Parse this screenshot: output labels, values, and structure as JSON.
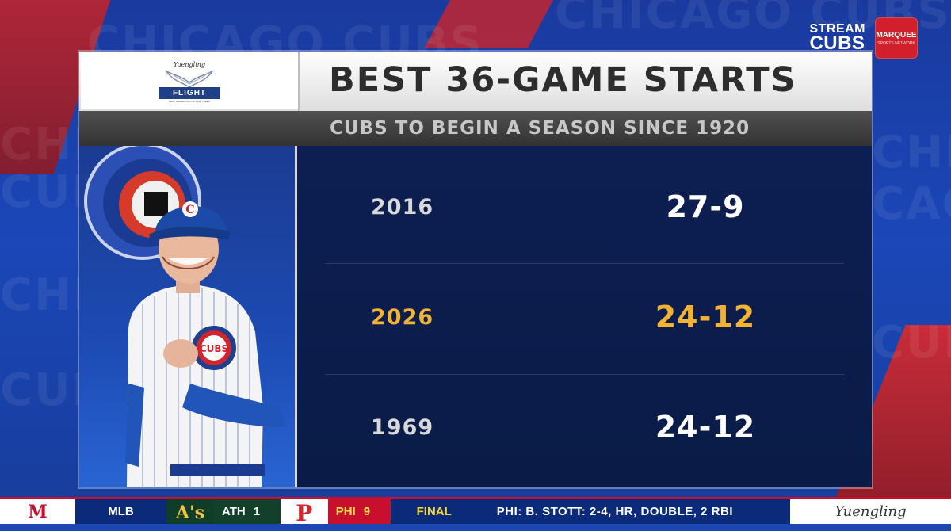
{
  "background": {
    "words": [
      "CHICAGO CUBS",
      "CHICAGO CUBS",
      "CHICAGO",
      "CUBS",
      "CHICAGO",
      "CUBS",
      "CHI",
      "CAGO",
      "CUBS"
    ]
  },
  "header_logos": {
    "stream_line1": "STREAM",
    "stream_line2": "CUBS",
    "marquee": "MARQUEE",
    "marquee_sub": "SPORTS NETWORK"
  },
  "sponsor": {
    "brand_script": "Yuengling",
    "badge": "FLIGHT",
    "tagline": "NEXT GENERATION OF LIGHT BEER"
  },
  "title": "BEST 36-GAME STARTS",
  "subtitle": "CUBS TO BEGIN A SEASON SINCE 1920",
  "rows": [
    {
      "year": "2016",
      "record": "27-9",
      "highlight": false
    },
    {
      "year": "2026",
      "record": "24-12",
      "highlight": true
    },
    {
      "year": "1969",
      "record": "24-12",
      "highlight": false
    }
  ],
  "colors": {
    "highlight": "#f3b233",
    "panel_bg": "#0a1c4b",
    "cubs_blue": "#1b47b8",
    "cubs_red": "#c8102e"
  },
  "ticker": {
    "league_logo": "M",
    "league": "MLB",
    "away_logo": "A's",
    "away_abbr": "ATH",
    "away_score": "1",
    "home_logo": "P",
    "home_abbr": "PHI",
    "home_score": "9",
    "status": "FINAL",
    "note": "PHI:  B. STOTT: 2-4, HR, DOUBLE, 2 RBI",
    "sponsor": "Yuengling"
  },
  "icons": {
    "photo": "manager-photo",
    "logo": "cubs-logo-icon",
    "wings": "wings-icon"
  }
}
